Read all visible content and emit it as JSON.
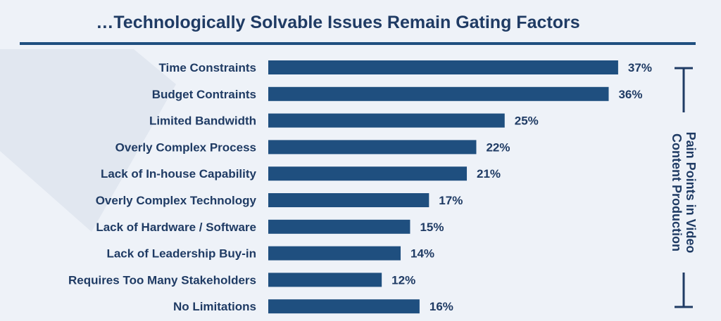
{
  "title": "…Technologically Solvable Issues Remain Gating Factors",
  "side_label": "Pain Points in Video\nContent Production",
  "colors": {
    "bar": "#1f4f7f",
    "text": "#1f3b64",
    "background": "#eef2f8",
    "background_shape": "#dfe5ee"
  },
  "chart_data": {
    "type": "bar",
    "orientation": "horizontal",
    "categories": [
      "Time Constraints",
      "Budget Contraints",
      "Limited Bandwidth",
      "Overly Complex Process",
      "Lack of In-house Capability",
      "Overly Complex Technology",
      "Lack of Hardware / Software",
      "Lack of Leadership Buy-in",
      "Requires Too Many Stakeholders",
      "No Limitations"
    ],
    "values": [
      37,
      36,
      25,
      22,
      21,
      17,
      15,
      14,
      12,
      16
    ],
    "value_labels": [
      "37%",
      "36%",
      "25%",
      "22%",
      "21%",
      "17%",
      "15%",
      "14%",
      "12%",
      "16%"
    ],
    "unit": "%",
    "grid": false,
    "legend": "none"
  }
}
